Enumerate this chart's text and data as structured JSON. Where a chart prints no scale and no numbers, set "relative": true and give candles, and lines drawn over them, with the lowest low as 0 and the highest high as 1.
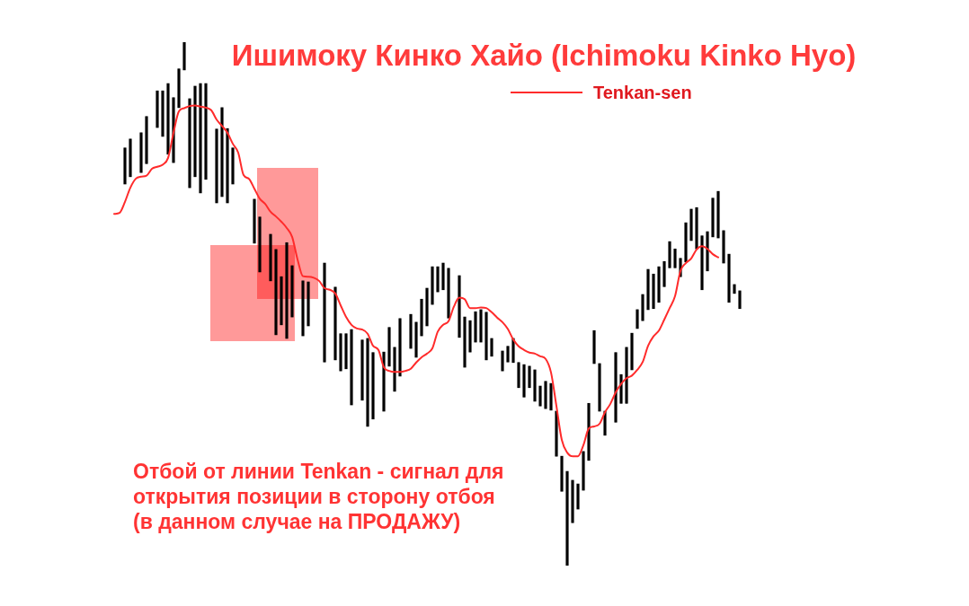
{
  "chart_data": {
    "type": "candlestick",
    "title": "Ишимоку Кинко Хайо (Ichimoku Kinko Hyo)",
    "annotations": [
      "Отбой от линии Tenkan - сигнал для открытия позиции в сторону отбоя (в данном случае на ПРОДАЖУ)"
    ],
    "relative": true,
    "legend": "top",
    "marker": "none",
    "tick_labels": false,
    "color": "#000000",
    "categories": [
      null,
      null,
      null,
      null,
      null,
      null,
      null,
      null,
      null,
      null,
      null,
      null,
      null,
      null,
      null,
      null,
      null,
      null,
      null,
      null,
      null,
      null,
      null,
      null,
      null,
      null,
      null,
      null,
      null,
      null,
      null,
      null,
      null,
      null,
      null,
      null,
      null,
      null,
      null,
      null,
      null,
      null,
      null,
      null,
      null,
      null,
      null,
      null,
      null,
      null,
      null,
      null,
      null,
      null,
      null,
      null,
      null,
      null,
      null,
      null,
      null,
      null,
      null,
      null,
      null,
      null,
      null,
      null,
      null,
      null,
      null,
      null,
      null,
      null,
      null,
      null,
      null,
      null,
      null,
      null,
      null,
      null,
      null,
      null,
      null,
      null,
      null,
      null,
      null,
      null,
      null,
      null,
      null,
      null,
      null,
      null,
      null,
      null,
      null,
      null,
      null,
      null,
      null,
      null,
      null,
      null,
      null,
      null,
      null,
      null,
      null,
      null,
      null,
      null,
      null,
      null,
      null
    ],
    "ohlc": [
      null,
      null,
      [
        0.729,
        0.798,
        0.729,
        0.798
      ],
      [
        0.743,
        0.815,
        0.743,
        0.815
      ],
      null,
      [
        0.751,
        0.827,
        0.751,
        0.827
      ],
      [
        0.768,
        0.858,
        0.768,
        0.858
      ],
      null,
      [
        0.837,
        0.907,
        0.837,
        0.907
      ],
      [
        0.82,
        0.907,
        0.82,
        0.907
      ],
      [
        0.786,
        0.921,
        0.786,
        0.921
      ],
      [
        0.77,
        0.894,
        0.77,
        0.894
      ],
      [
        0.875,
        0.949,
        0.875,
        0.949
      ],
      [
        0.947,
        1,
        0.947,
        1
      ],
      [
        0.722,
        0.892,
        0.722,
        0.892
      ],
      [
        0.743,
        0.916,
        0.743,
        0.916
      ],
      [
        0.712,
        0.921,
        0.712,
        0.921
      ],
      [
        0.738,
        0.921,
        0.738,
        0.921
      ],
      null,
      [
        0.693,
        0.834,
        0.693,
        0.834
      ],
      [
        0.705,
        0.875,
        0.705,
        0.875
      ],
      [
        0.693,
        0.835,
        0.693,
        0.835
      ],
      [
        0.729,
        0.798,
        0.729,
        0.798
      ],
      null,
      null,
      null,
      [
        0.616,
        0.7,
        0.616,
        0.7
      ],
      [
        0.561,
        0.666,
        0.561,
        0.666
      ],
      null,
      [
        0.544,
        0.633,
        0.544,
        0.633
      ],
      [
        0.441,
        0.604,
        0.441,
        0.604
      ],
      [
        0.46,
        0.552,
        0.46,
        0.552
      ],
      [
        0.434,
        0.617,
        0.434,
        0.617
      ],
      [
        0.475,
        0.573,
        0.475,
        0.573
      ],
      null,
      [
        0.439,
        0.544,
        0.439,
        0.544
      ],
      [
        0.458,
        0.542,
        0.458,
        0.542
      ],
      null,
      null,
      [
        0.389,
        0.578,
        0.389,
        0.578
      ],
      null,
      [
        0.393,
        0.532,
        0.393,
        0.532
      ],
      [
        0.372,
        0.443,
        0.372,
        0.443
      ],
      [
        0.376,
        0.443,
        0.376,
        0.443
      ],
      [
        0.307,
        0.451,
        0.307,
        0.451
      ],
      null,
      [
        0.316,
        0.431,
        0.316,
        0.431
      ],
      [
        0.266,
        0.434,
        0.266,
        0.434
      ],
      [
        0.28,
        0.407,
        0.28,
        0.407
      ],
      null,
      [
        0.295,
        0.408,
        0.295,
        0.408
      ],
      [
        0.381,
        0.455,
        0.381,
        0.455
      ],
      [
        0.333,
        0.417,
        0.333,
        0.417
      ],
      [
        0.362,
        0.472,
        0.362,
        0.472
      ],
      null,
      [
        0.415,
        0.48,
        0.415,
        0.48
      ],
      [
        0.398,
        0.465,
        0.398,
        0.465
      ],
      [
        0.439,
        0.509,
        0.439,
        0.509
      ],
      [
        0.458,
        0.53,
        0.458,
        0.53
      ],
      [
        0.499,
        0.571,
        0.499,
        0.571
      ],
      [
        0.523,
        0.571,
        0.523,
        0.571
      ],
      [
        0.527,
        0.578,
        0.527,
        0.578
      ],
      [
        0.473,
        0.568,
        0.473,
        0.568
      ],
      null,
      [
        0.436,
        0.554,
        0.436,
        0.554
      ],
      [
        0.379,
        0.475,
        0.379,
        0.475
      ],
      [
        0.408,
        0.468,
        0.408,
        0.468
      ],
      [
        0.427,
        0.485,
        0.427,
        0.485
      ],
      [
        0.427,
        0.489,
        0.427,
        0.489
      ],
      [
        0.393,
        0.484,
        0.393,
        0.484
      ],
      [
        0.4,
        0.434,
        0.4,
        0.434
      ],
      null,
      [
        0.372,
        0.41,
        0.372,
        0.41
      ],
      [
        0.389,
        0.419,
        0.389,
        0.419
      ],
      [
        0.388,
        0.434,
        0.388,
        0.434
      ],
      [
        0.34,
        0.388,
        0.34,
        0.388
      ],
      [
        0.322,
        0.384,
        0.322,
        0.384
      ],
      [
        0.34,
        0.381,
        0.34,
        0.381
      ],
      [
        0.314,
        0.374,
        0.314,
        0.374
      ],
      [
        0.305,
        0.343,
        0.305,
        0.343
      ],
      [
        0.3,
        0.352,
        0.3,
        0.352
      ],
      [
        0.297,
        0.348,
        0.297,
        0.348
      ],
      [
        0.209,
        0.295,
        0.209,
        0.295
      ],
      [
        0.142,
        0.209,
        0.142,
        0.209
      ],
      [
        0,
        0.18,
        0,
        0.18
      ],
      [
        0.082,
        0.163,
        0.082,
        0.163
      ],
      [
        0.108,
        0.156,
        0.108,
        0.156
      ],
      [
        0.144,
        0.218,
        0.144,
        0.218
      ],
      [
        0.201,
        0.31,
        0.201,
        0.31
      ],
      [
        0.386,
        0.449,
        0.386,
        0.449
      ],
      [
        0.295,
        0.386,
        0.295,
        0.386
      ],
      [
        0.249,
        0.295,
        0.249,
        0.295
      ],
      null,
      [
        0.274,
        0.407,
        0.274,
        0.407
      ],
      [
        0.31,
        0.365,
        0.31,
        0.365
      ],
      [
        0.31,
        0.417,
        0.31,
        0.417
      ],
      [
        0.374,
        0.444,
        0.374,
        0.444
      ],
      [
        0.453,
        0.489,
        0.453,
        0.489
      ],
      [
        0.468,
        0.518,
        0.468,
        0.518
      ],
      [
        0.489,
        0.566,
        0.489,
        0.566
      ],
      [
        0.491,
        0.557,
        0.491,
        0.557
      ],
      [
        0.503,
        0.571,
        0.503,
        0.571
      ],
      [
        0.533,
        0.581,
        0.533,
        0.581
      ],
      [
        0.569,
        0.619,
        0.569,
        0.619
      ],
      [
        0.569,
        0.605,
        0.569,
        0.605
      ],
      [
        0.552,
        0.587,
        0.552,
        0.587
      ],
      [
        0.58,
        0.655,
        0.58,
        0.655
      ],
      [
        0.621,
        0.681,
        0.621,
        0.681
      ],
      [
        0.605,
        0.684,
        0.605,
        0.684
      ],
      [
        0.527,
        0.63,
        0.527,
        0.63
      ],
      [
        0.563,
        0.638,
        0.563,
        0.638
      ],
      [
        0.628,
        0.702,
        0.628,
        0.702
      ],
      [
        0.626,
        0.715,
        0.626,
        0.715
      ],
      [
        0.578,
        0.64,
        0.578,
        0.64
      ],
      [
        0.503,
        0.595,
        0.503,
        0.595
      ],
      [
        0.52,
        0.537,
        0.52,
        0.537
      ],
      [
        0.491,
        0.525,
        0.491,
        0.525
      ]
    ],
    "series": [
      {
        "type": "line",
        "name": "Tenkan-sen",
        "color": "#ff2b2b",
        "values": [
          0.672,
          0.674,
          0.695,
          0.722,
          0.739,
          0.743,
          0.745,
          0.758,
          0.762,
          0.766,
          0.779,
          0.827,
          0.868,
          0.874,
          0.878,
          0.879,
          0.877,
          0.875,
          0.87,
          0.852,
          0.84,
          0.827,
          0.806,
          0.789,
          0.746,
          0.739,
          0.72,
          0.701,
          0.691,
          0.676,
          0.667,
          0.657,
          0.645,
          0.628,
          0.585,
          0.553,
          0.552,
          0.55,
          0.544,
          0.53,
          0.527,
          0.52,
          0.497,
          0.475,
          0.46,
          0.453,
          0.451,
          0.443,
          0.42,
          0.412,
          0.379,
          0.372,
          0.37,
          0.37,
          0.372,
          0.376,
          0.388,
          0.398,
          0.405,
          0.415,
          0.447,
          0.46,
          0.467,
          0.495,
          0.512,
          0.509,
          0.492,
          0.492,
          0.493,
          0.492,
          0.484,
          0.474,
          0.465,
          0.452,
          0.432,
          0.419,
          0.412,
          0.407,
          0.405,
          0.4,
          0.395,
          0.369,
          0.305,
          0.24,
          0.216,
          0.209,
          0.209,
          0.23,
          0.262,
          0.266,
          0.271,
          0.293,
          0.309,
          0.331,
          0.347,
          0.358,
          0.363,
          0.374,
          0.389,
          0.42,
          0.438,
          0.449,
          0.47,
          0.492,
          0.515,
          0.563,
          0.578,
          0.587,
          0.604,
          0.61,
          0.605,
          0.595,
          0.589,
          null,
          null,
          null,
          null
        ]
      }
    ]
  }
}
